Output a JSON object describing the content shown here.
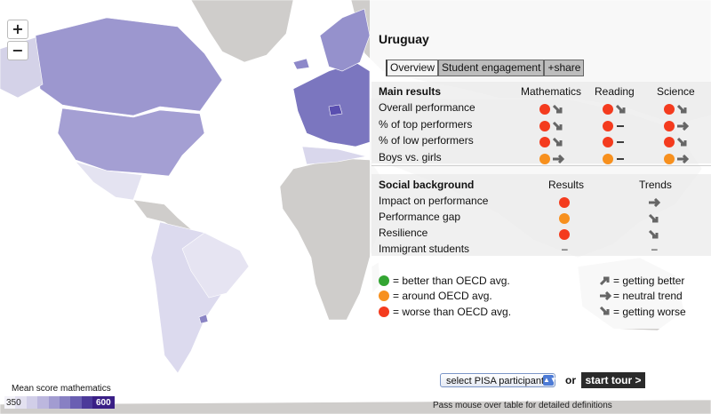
{
  "zoom": {
    "in_label": "+",
    "out_label": "−"
  },
  "country": "Uruguay",
  "tabs": [
    {
      "label": "Overview"
    },
    {
      "label": "Student engagement"
    },
    {
      "label": "+share"
    }
  ],
  "main_results": {
    "header": "Main results",
    "columns": [
      "Mathematics",
      "Reading",
      "Science"
    ],
    "rows": [
      {
        "label": "Overall performance",
        "cells": [
          {
            "result": "red",
            "trend": "down"
          },
          {
            "result": "red",
            "trend": "down"
          },
          {
            "result": "red",
            "trend": "down"
          }
        ]
      },
      {
        "label": "% of top performers",
        "cells": [
          {
            "result": "red",
            "trend": "down"
          },
          {
            "result": "red",
            "trend": "neutral"
          },
          {
            "result": "red",
            "trend": "right"
          }
        ]
      },
      {
        "label": "% of low performers",
        "cells": [
          {
            "result": "red",
            "trend": "down"
          },
          {
            "result": "red",
            "trend": "neutral"
          },
          {
            "result": "red",
            "trend": "down"
          }
        ]
      },
      {
        "label": "Boys vs. girls",
        "cells": [
          {
            "result": "orange",
            "trend": "right"
          },
          {
            "result": "orange",
            "trend": "neutral"
          },
          {
            "result": "orange",
            "trend": "right"
          }
        ]
      }
    ]
  },
  "social_background": {
    "header": "Social background",
    "columns": [
      "Results",
      "Trends"
    ],
    "rows": [
      {
        "label": "Impact on performance",
        "result": "red",
        "trend": "right"
      },
      {
        "label": "Performance gap",
        "result": "orange",
        "trend": "down"
      },
      {
        "label": "Resilience",
        "result": "red",
        "trend": "down"
      },
      {
        "label": "Immigrant students",
        "result_text": "–",
        "trend_text": "–"
      }
    ]
  },
  "legend": {
    "better": "= better than OECD avg.",
    "around": "= around OECD avg.",
    "worse": "= worse than OECD avg.",
    "getting_better": "= getting better",
    "neutral_trend": "= neutral trend",
    "getting_worse": "= getting worse"
  },
  "colors": {
    "red": "#f43b1e",
    "orange": "#f7901e",
    "green": "#33a532"
  },
  "controls": {
    "select_label": "select PISA participant",
    "or_label": "or",
    "tour_label": "start tour >",
    "hint": "Pass mouse over table for detailed definitions"
  },
  "scale": {
    "title": "Mean score mathematics",
    "min_label": "350",
    "max_label": "600"
  }
}
